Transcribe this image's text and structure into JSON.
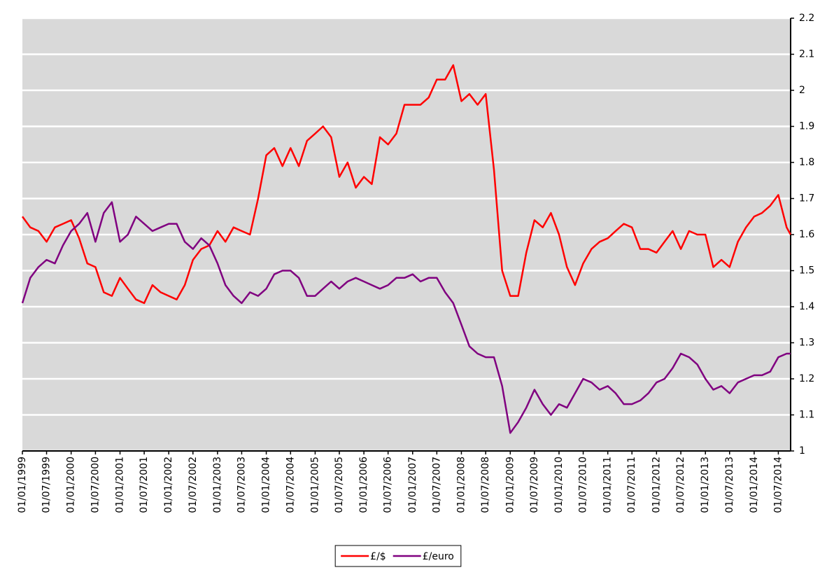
{
  "chart_data": {
    "type": "line",
    "x": [
      "01/01/1999",
      "01/03/1999",
      "01/05/1999",
      "01/07/1999",
      "01/09/1999",
      "01/11/1999",
      "01/01/2000",
      "01/03/2000",
      "01/05/2000",
      "01/07/2000",
      "01/09/2000",
      "01/11/2000",
      "01/01/2001",
      "01/03/2001",
      "01/05/2001",
      "01/07/2001",
      "01/09/2001",
      "01/11/2001",
      "01/01/2002",
      "01/03/2002",
      "01/05/2002",
      "01/07/2002",
      "01/09/2002",
      "01/11/2002",
      "01/01/2003",
      "01/03/2003",
      "01/05/2003",
      "01/07/2003",
      "01/09/2003",
      "01/11/2003",
      "01/01/2004",
      "01/03/2004",
      "01/05/2004",
      "01/07/2004",
      "01/09/2004",
      "01/11/2004",
      "01/01/2005",
      "01/03/2005",
      "01/05/2005",
      "01/07/2005",
      "01/09/2005",
      "01/11/2005",
      "01/01/2006",
      "01/03/2006",
      "01/05/2006",
      "01/07/2006",
      "01/09/2006",
      "01/11/2006",
      "01/01/2007",
      "01/03/2007",
      "01/05/2007",
      "01/07/2007",
      "01/09/2007",
      "01/11/2007",
      "01/01/2008",
      "01/03/2008",
      "01/05/2008",
      "01/07/2008",
      "01/09/2008",
      "01/11/2008",
      "01/01/2009",
      "01/03/2009",
      "01/05/2009",
      "01/07/2009",
      "01/09/2009",
      "01/11/2009",
      "01/01/2010",
      "01/03/2010",
      "01/05/2010",
      "01/07/2010",
      "01/09/2010",
      "01/11/2010",
      "01/01/2011",
      "01/03/2011",
      "01/05/2011",
      "01/07/2011",
      "01/09/2011",
      "01/11/2011",
      "01/01/2012",
      "01/03/2012",
      "01/05/2012",
      "01/07/2012",
      "01/09/2012",
      "01/11/2012",
      "01/01/2013",
      "01/03/2013",
      "01/05/2013",
      "01/07/2013",
      "01/09/2013",
      "01/11/2013",
      "01/01/2014",
      "01/03/2014",
      "01/05/2014",
      "01/07/2014",
      "01/09/2014",
      "01/10/2014"
    ],
    "series": [
      {
        "name": "£/$",
        "color": "#ff0000",
        "values": [
          1.65,
          1.62,
          1.61,
          1.58,
          1.62,
          1.63,
          1.64,
          1.59,
          1.52,
          1.51,
          1.44,
          1.43,
          1.48,
          1.45,
          1.42,
          1.41,
          1.46,
          1.44,
          1.43,
          1.42,
          1.46,
          1.53,
          1.56,
          1.57,
          1.61,
          1.58,
          1.62,
          1.61,
          1.6,
          1.7,
          1.82,
          1.84,
          1.79,
          1.84,
          1.79,
          1.86,
          1.88,
          1.9,
          1.87,
          1.76,
          1.8,
          1.73,
          1.76,
          1.74,
          1.87,
          1.85,
          1.88,
          1.96,
          1.96,
          1.96,
          1.98,
          2.03,
          2.03,
          2.07,
          1.97,
          1.99,
          1.96,
          1.99,
          1.78,
          1.5,
          1.43,
          1.43,
          1.55,
          1.64,
          1.62,
          1.66,
          1.6,
          1.51,
          1.46,
          1.52,
          1.56,
          1.58,
          1.59,
          1.61,
          1.63,
          1.62,
          1.56,
          1.56,
          1.55,
          1.58,
          1.61,
          1.56,
          1.61,
          1.6,
          1.6,
          1.51,
          1.53,
          1.51,
          1.58,
          1.62,
          1.65,
          1.66,
          1.68,
          1.71,
          1.62,
          1.6
        ]
      },
      {
        "name": "£/euro",
        "color": "#800080",
        "values": [
          1.41,
          1.48,
          1.51,
          1.53,
          1.52,
          1.57,
          1.61,
          1.63,
          1.66,
          1.58,
          1.66,
          1.69,
          1.58,
          1.6,
          1.65,
          1.63,
          1.61,
          1.62,
          1.63,
          1.63,
          1.58,
          1.56,
          1.59,
          1.57,
          1.52,
          1.46,
          1.43,
          1.41,
          1.44,
          1.43,
          1.45,
          1.49,
          1.5,
          1.5,
          1.48,
          1.43,
          1.43,
          1.45,
          1.47,
          1.45,
          1.47,
          1.48,
          1.47,
          1.46,
          1.45,
          1.46,
          1.48,
          1.48,
          1.49,
          1.47,
          1.48,
          1.48,
          1.44,
          1.41,
          1.35,
          1.29,
          1.27,
          1.26,
          1.26,
          1.18,
          1.05,
          1.08,
          1.12,
          1.17,
          1.13,
          1.1,
          1.13,
          1.12,
          1.16,
          1.2,
          1.19,
          1.17,
          1.18,
          1.16,
          1.13,
          1.13,
          1.14,
          1.16,
          1.19,
          1.2,
          1.23,
          1.27,
          1.26,
          1.24,
          1.2,
          1.17,
          1.18,
          1.16,
          1.19,
          1.2,
          1.21,
          1.21,
          1.22,
          1.26,
          1.27,
          1.27
        ]
      }
    ],
    "xlim": [
      "01/01/1999",
      "01/10/2014"
    ],
    "xticks": [
      "01/01/1999",
      "01/07/1999",
      "01/01/2000",
      "01/07/2000",
      "01/01/2001",
      "01/07/2001",
      "01/01/2002",
      "01/07/2002",
      "01/01/2003",
      "01/07/2003",
      "01/01/2004",
      "01/07/2004",
      "01/01/2005",
      "01/07/2005",
      "01/01/2006",
      "01/07/2006",
      "01/01/2007",
      "01/07/2007",
      "01/01/2008",
      "01/07/2008",
      "01/01/2009",
      "01/07/2009",
      "01/01/2010",
      "01/07/2010",
      "01/01/2011",
      "01/07/2011",
      "01/01/2012",
      "01/07/2012",
      "01/01/2013",
      "01/07/2013",
      "01/01/2014",
      "01/07/2014"
    ],
    "ylim": [
      1,
      2.2
    ],
    "yticks": [
      1,
      1.1,
      1.2,
      1.3,
      1.4,
      1.5,
      1.6,
      1.7,
      1.8,
      1.9,
      2,
      2.1,
      2.2
    ],
    "y_axis_side": "right",
    "grid": true,
    "legend": "bottom"
  }
}
